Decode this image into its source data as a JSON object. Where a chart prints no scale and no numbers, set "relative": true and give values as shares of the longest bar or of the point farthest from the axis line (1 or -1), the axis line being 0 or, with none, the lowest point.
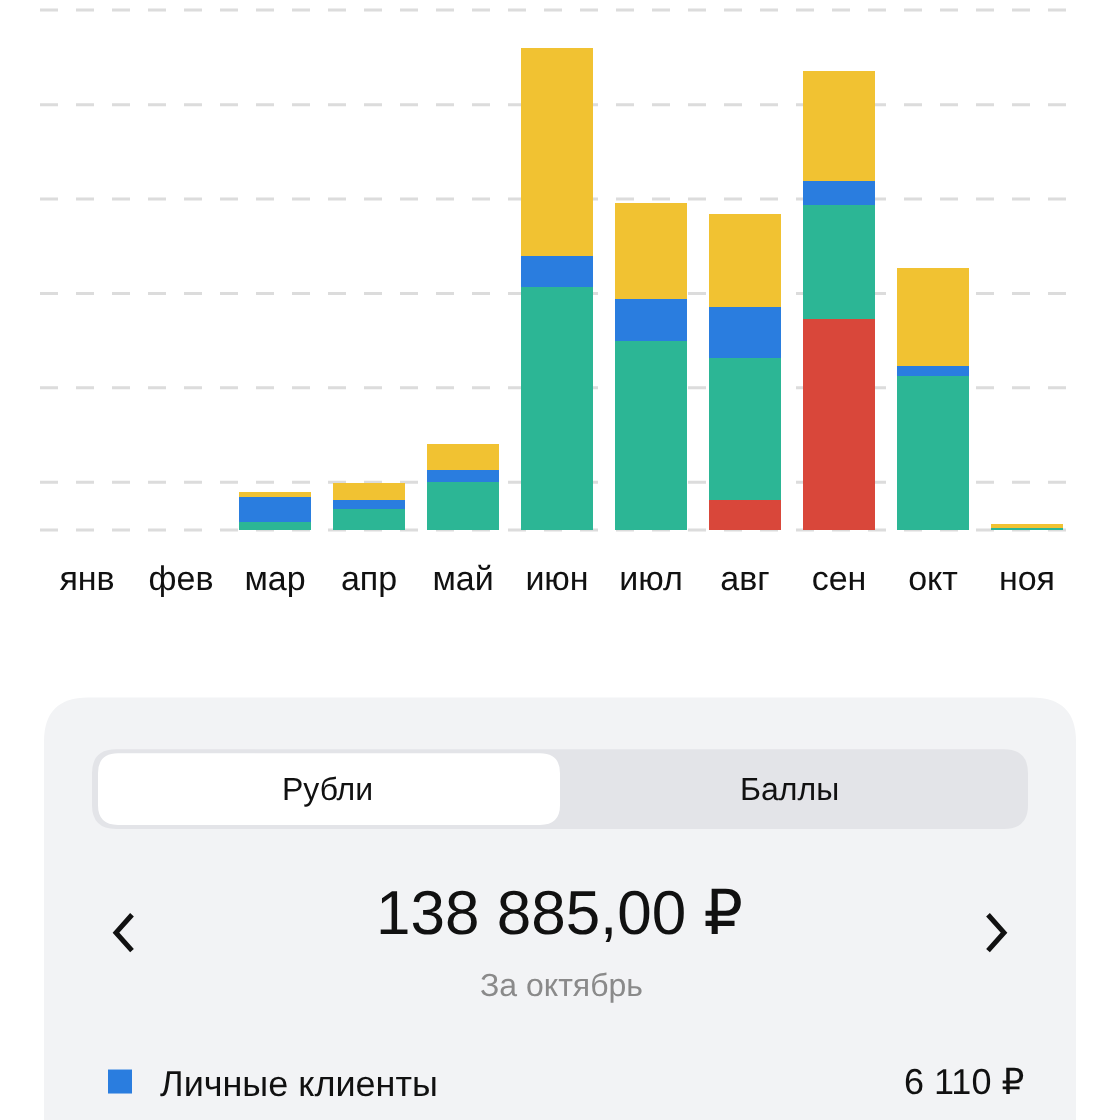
{
  "chart_data": {
    "type": "bar",
    "stacked": true,
    "relative": true,
    "grid": "y",
    "legend": "bottom",
    "categories": [
      "янв",
      "фев",
      "мар",
      "апр",
      "май",
      "июн",
      "июл",
      "авг",
      "сен",
      "окт",
      "ноя"
    ],
    "series": [
      {
        "color": "#d9473a",
        "values": [
          null,
          null,
          null,
          null,
          null,
          null,
          null,
          0.062,
          0.437,
          null,
          null
        ]
      },
      {
        "color": "#2cb695",
        "values": [
          null,
          null,
          0.017,
          0.044,
          0.099,
          0.503,
          0.392,
          0.295,
          0.237,
          0.319,
          0.006
        ]
      },
      {
        "name": "Личные клиенты",
        "color": "#2a7ddf",
        "values": [
          null,
          null,
          0.051,
          0.018,
          0.025,
          0.065,
          0.087,
          0.105,
          0.05,
          0.022,
          null
        ]
      },
      {
        "color": "#f1c232",
        "values": [
          null,
          null,
          0.011,
          0.036,
          0.055,
          0.432,
          0.199,
          0.193,
          0.228,
          0.203,
          0.007
        ]
      }
    ],
    "annotations": [
      "Рубли",
      "Баллы",
      "138 885,00 ₽",
      "За октябрь",
      "6 110 ₽"
    ]
  }
}
